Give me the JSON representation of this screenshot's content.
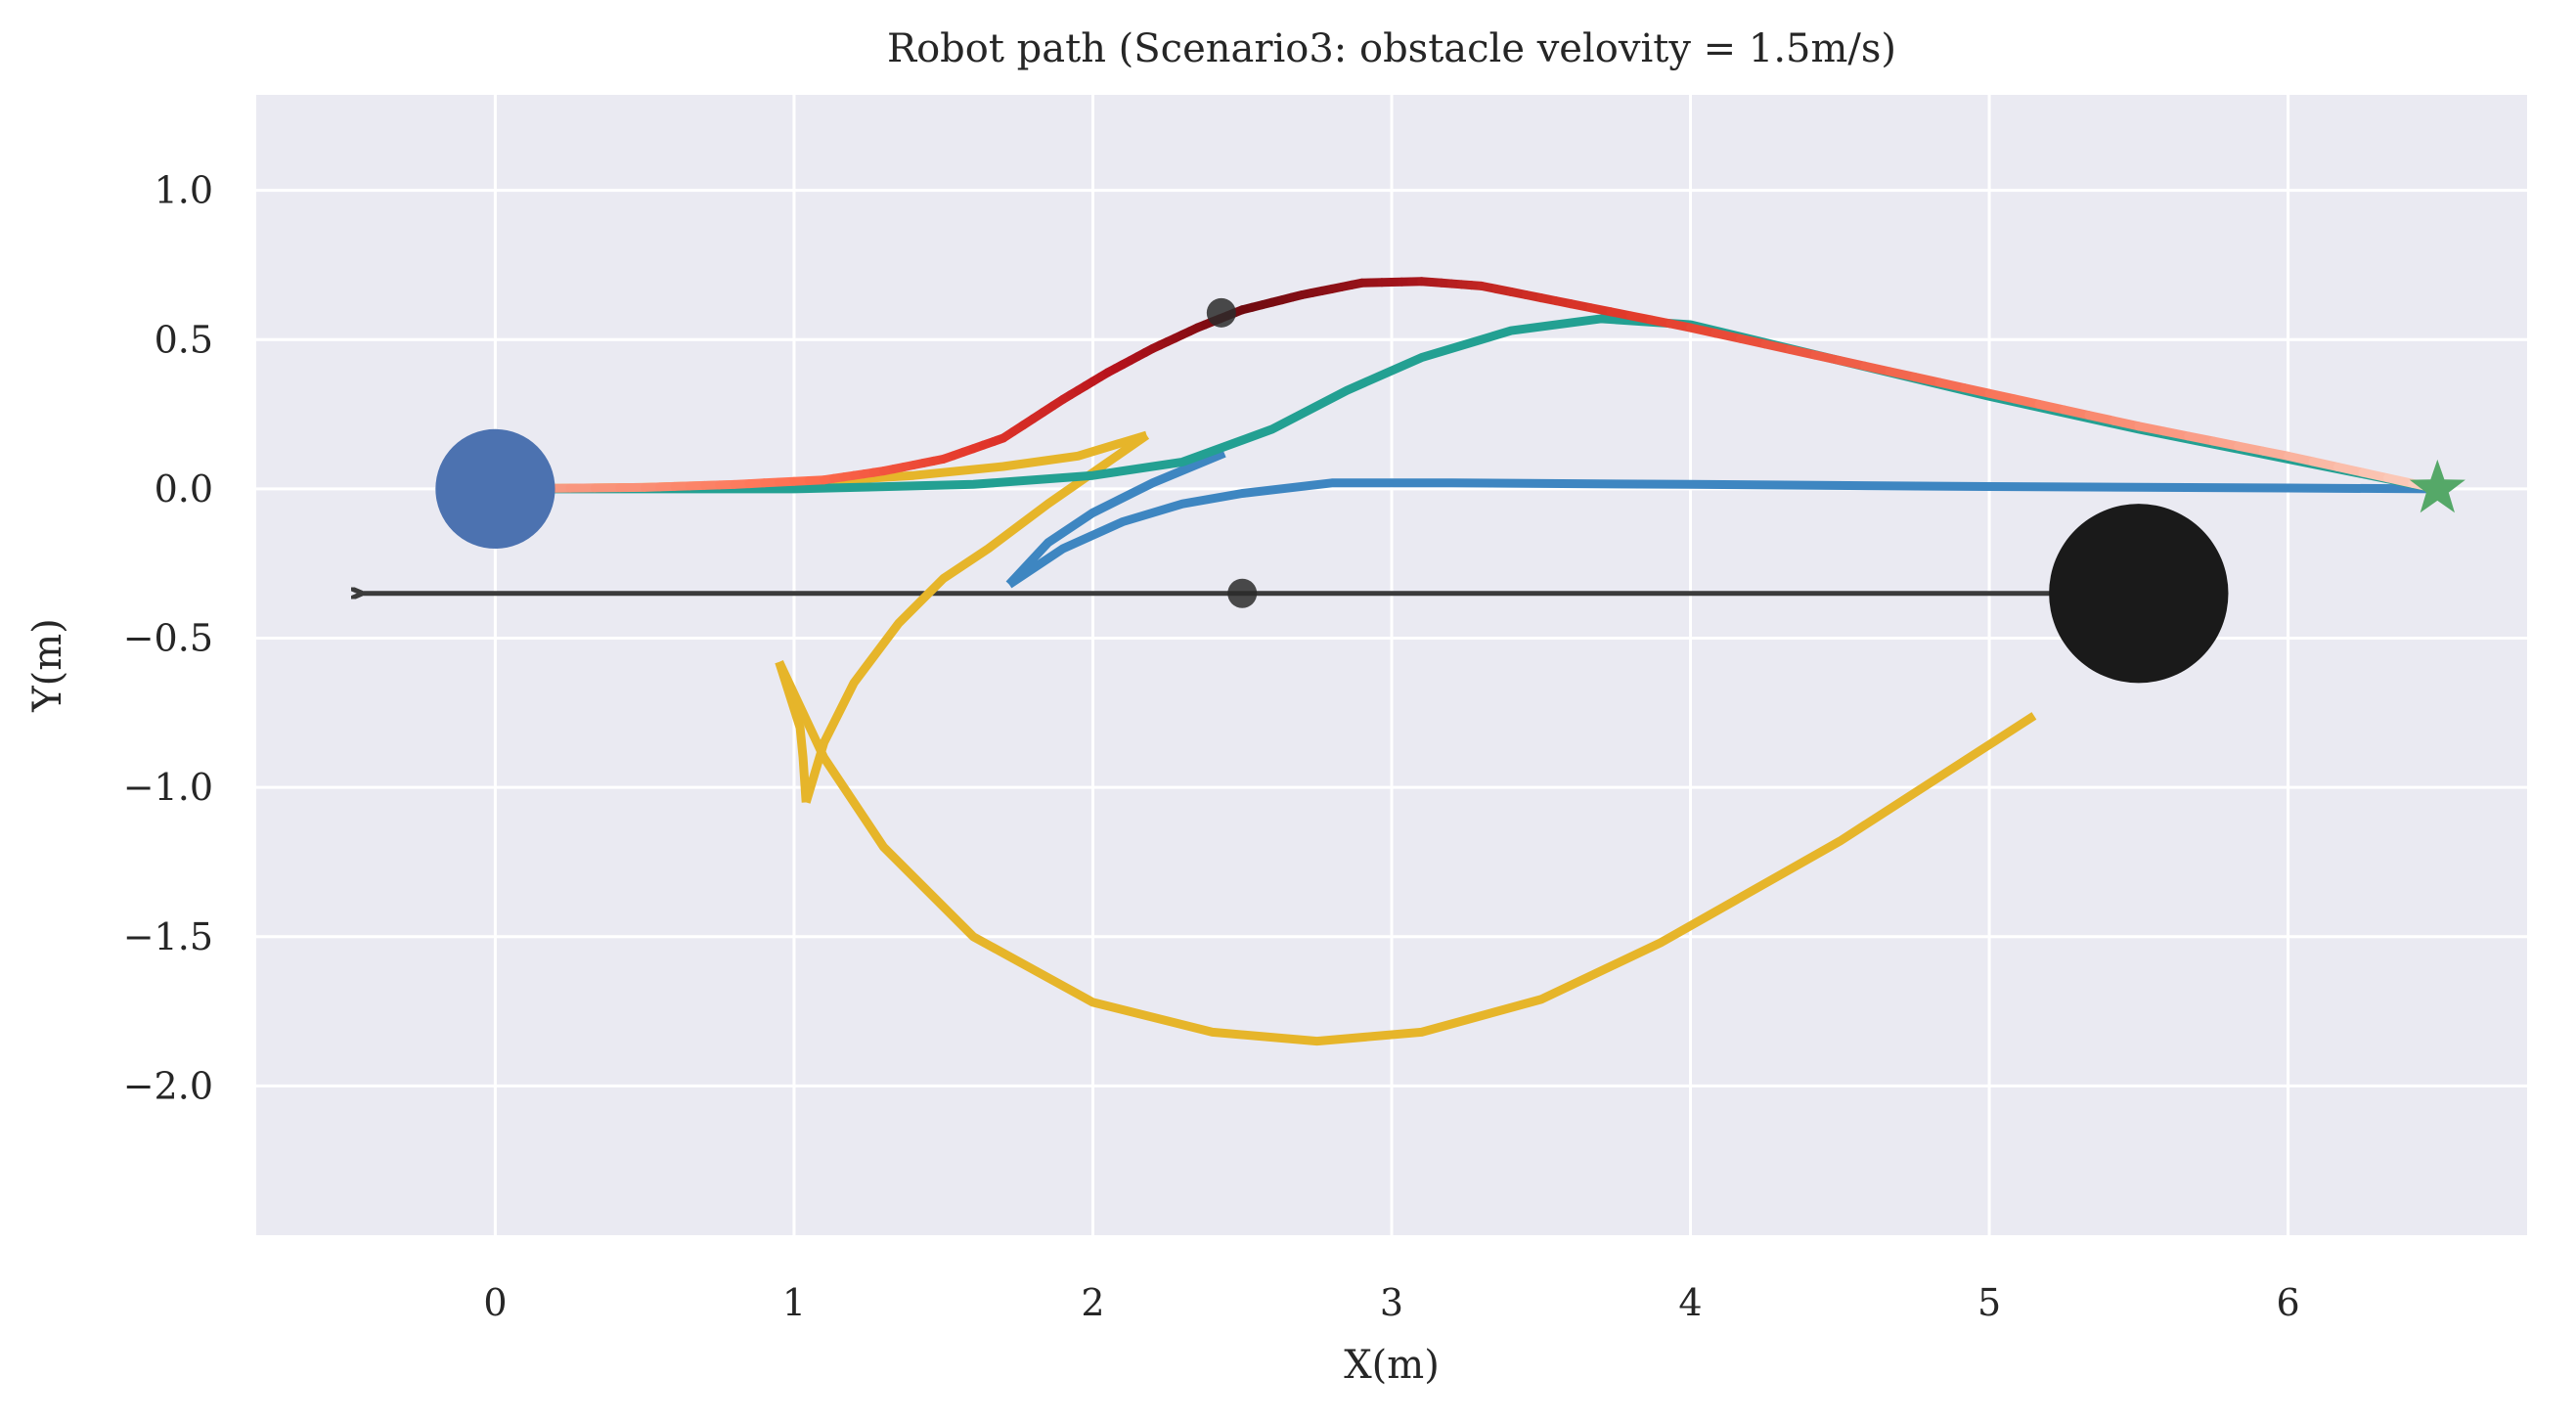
{
  "chart_data": {
    "type": "line",
    "title": "Robot path (Scenario3: obstacle velovity = 1.5m/s)",
    "xlabel": "X(m)",
    "ylabel": "Y(m)",
    "xlim": [
      -0.8,
      6.8
    ],
    "ylim": [
      -2.5,
      1.32
    ],
    "xticks": [
      0,
      1,
      2,
      3,
      4,
      5,
      6
    ],
    "xtick_labels": [
      "0",
      "1",
      "2",
      "3",
      "4",
      "5",
      "6"
    ],
    "yticks": [
      1.0,
      0.5,
      0.0,
      -0.5,
      -1.0,
      -1.5,
      -2.0
    ],
    "ytick_labels": [
      "1.0",
      "0.5",
      "0.0",
      "−0.5",
      "−1.0",
      "−1.5",
      "−2.0"
    ],
    "grid": true,
    "background_color": "#eaeaf2",
    "grid_color": "#ffffff",
    "series": [
      {
        "color": "#e6b52a",
        "points": [
          [
            0.0,
            0.0
          ],
          [
            0.5,
            0.005
          ],
          [
            1.0,
            0.02
          ],
          [
            1.4,
            0.045
          ],
          [
            1.7,
            0.075
          ],
          [
            1.95,
            0.11
          ],
          [
            2.18,
            0.18
          ]
        ]
      },
      {
        "color": "#e6b52a",
        "points": [
          [
            2.18,
            0.18
          ],
          [
            1.85,
            -0.05
          ],
          [
            1.65,
            -0.2
          ],
          [
            1.5,
            -0.3
          ],
          [
            1.35,
            -0.45
          ],
          [
            1.2,
            -0.65
          ],
          [
            1.1,
            -0.85
          ],
          [
            1.04,
            -1.05
          ]
        ]
      },
      {
        "color": "#e6b52a",
        "points": [
          [
            1.04,
            -1.05
          ],
          [
            1.03,
            -0.9
          ],
          [
            1.02,
            -0.8
          ],
          [
            0.95,
            -0.58
          ]
        ]
      },
      {
        "color": "#e6b52a",
        "points": [
          [
            0.95,
            -0.58
          ],
          [
            1.1,
            -0.9
          ],
          [
            1.3,
            -1.2
          ],
          [
            1.6,
            -1.5
          ],
          [
            2.0,
            -1.72
          ],
          [
            2.4,
            -1.82
          ],
          [
            2.75,
            -1.85
          ],
          [
            3.1,
            -1.82
          ],
          [
            3.5,
            -1.71
          ],
          [
            3.9,
            -1.52
          ],
          [
            4.5,
            -1.18
          ],
          [
            5.15,
            -0.76
          ]
        ]
      },
      {
        "color": "#3e86c1",
        "points": [
          [
            2.44,
            0.12
          ],
          [
            2.2,
            0.02
          ],
          [
            2.0,
            -0.08
          ],
          [
            1.85,
            -0.18
          ],
          [
            1.72,
            -0.32
          ]
        ]
      },
      {
        "color": "#3e86c1",
        "points": [
          [
            1.72,
            -0.32
          ],
          [
            1.9,
            -0.2
          ],
          [
            2.1,
            -0.11
          ],
          [
            2.3,
            -0.05
          ],
          [
            2.5,
            -0.015
          ],
          [
            2.8,
            0.02
          ],
          [
            3.2,
            0.02
          ],
          [
            4.0,
            0.015
          ],
          [
            5.0,
            0.008
          ],
          [
            6.0,
            0.003
          ],
          [
            6.5,
            0.0
          ]
        ]
      },
      {
        "color": "#23a092",
        "points": [
          [
            0.0,
            0.0
          ],
          [
            1.0,
            0.0
          ],
          [
            1.6,
            0.015
          ],
          [
            2.0,
            0.045
          ],
          [
            2.3,
            0.09
          ],
          [
            2.6,
            0.2
          ],
          [
            2.85,
            0.33
          ],
          [
            3.1,
            0.44
          ],
          [
            3.4,
            0.53
          ],
          [
            3.7,
            0.57
          ],
          [
            4.0,
            0.55
          ],
          [
            4.5,
            0.43
          ],
          [
            5.0,
            0.31
          ],
          [
            5.5,
            0.2
          ],
          [
            6.0,
            0.1
          ],
          [
            6.5,
            0.0
          ]
        ]
      }
    ],
    "gradient_series": {
      "colors": [
        "#f7a08a",
        "#ff6f50",
        "#e4382b",
        "#b5121b",
        "#6e0a10",
        "#a3141b",
        "#e23a2a",
        "#f97a5e",
        "#fbd0c0"
      ],
      "points": [
        [
          0.0,
          0.0
        ],
        [
          0.5,
          0.005
        ],
        [
          0.8,
          0.015
        ],
        [
          1.1,
          0.03
        ],
        [
          1.3,
          0.06
        ],
        [
          1.5,
          0.1
        ],
        [
          1.7,
          0.17
        ],
        [
          1.9,
          0.3
        ],
        [
          2.05,
          0.39
        ],
        [
          2.2,
          0.47
        ],
        [
          2.35,
          0.54
        ],
        [
          2.5,
          0.6
        ],
        [
          2.7,
          0.65
        ],
        [
          2.9,
          0.69
        ],
        [
          3.1,
          0.695
        ],
        [
          3.3,
          0.68
        ],
        [
          3.6,
          0.62
        ],
        [
          4.0,
          0.54
        ],
        [
          4.5,
          0.43
        ],
        [
          5.0,
          0.32
        ],
        [
          5.5,
          0.21
        ],
        [
          6.0,
          0.11
        ],
        [
          6.5,
          0.0
        ]
      ]
    },
    "robot_start": {
      "x": 0.0,
      "y": 0.0,
      "radius": 0.2,
      "color": "#4c72b0"
    },
    "goal": {
      "x": 6.5,
      "y": 0.0,
      "color": "#55a868",
      "marker": "star"
    },
    "obstacle": {
      "x": 5.5,
      "y": -0.35,
      "radius": 0.3,
      "color": "#1a1a1a"
    },
    "obstacle_path": {
      "from": [
        5.5,
        -0.35
      ],
      "to": [
        -0.45,
        -0.35
      ],
      "color": "#3b3b3b",
      "arrow": "left"
    },
    "small_markers": [
      {
        "x": 2.43,
        "y": 0.59,
        "color": "#2b2b2b"
      },
      {
        "x": 2.5,
        "y": -0.35,
        "color": "#2b2b2b"
      }
    ]
  }
}
